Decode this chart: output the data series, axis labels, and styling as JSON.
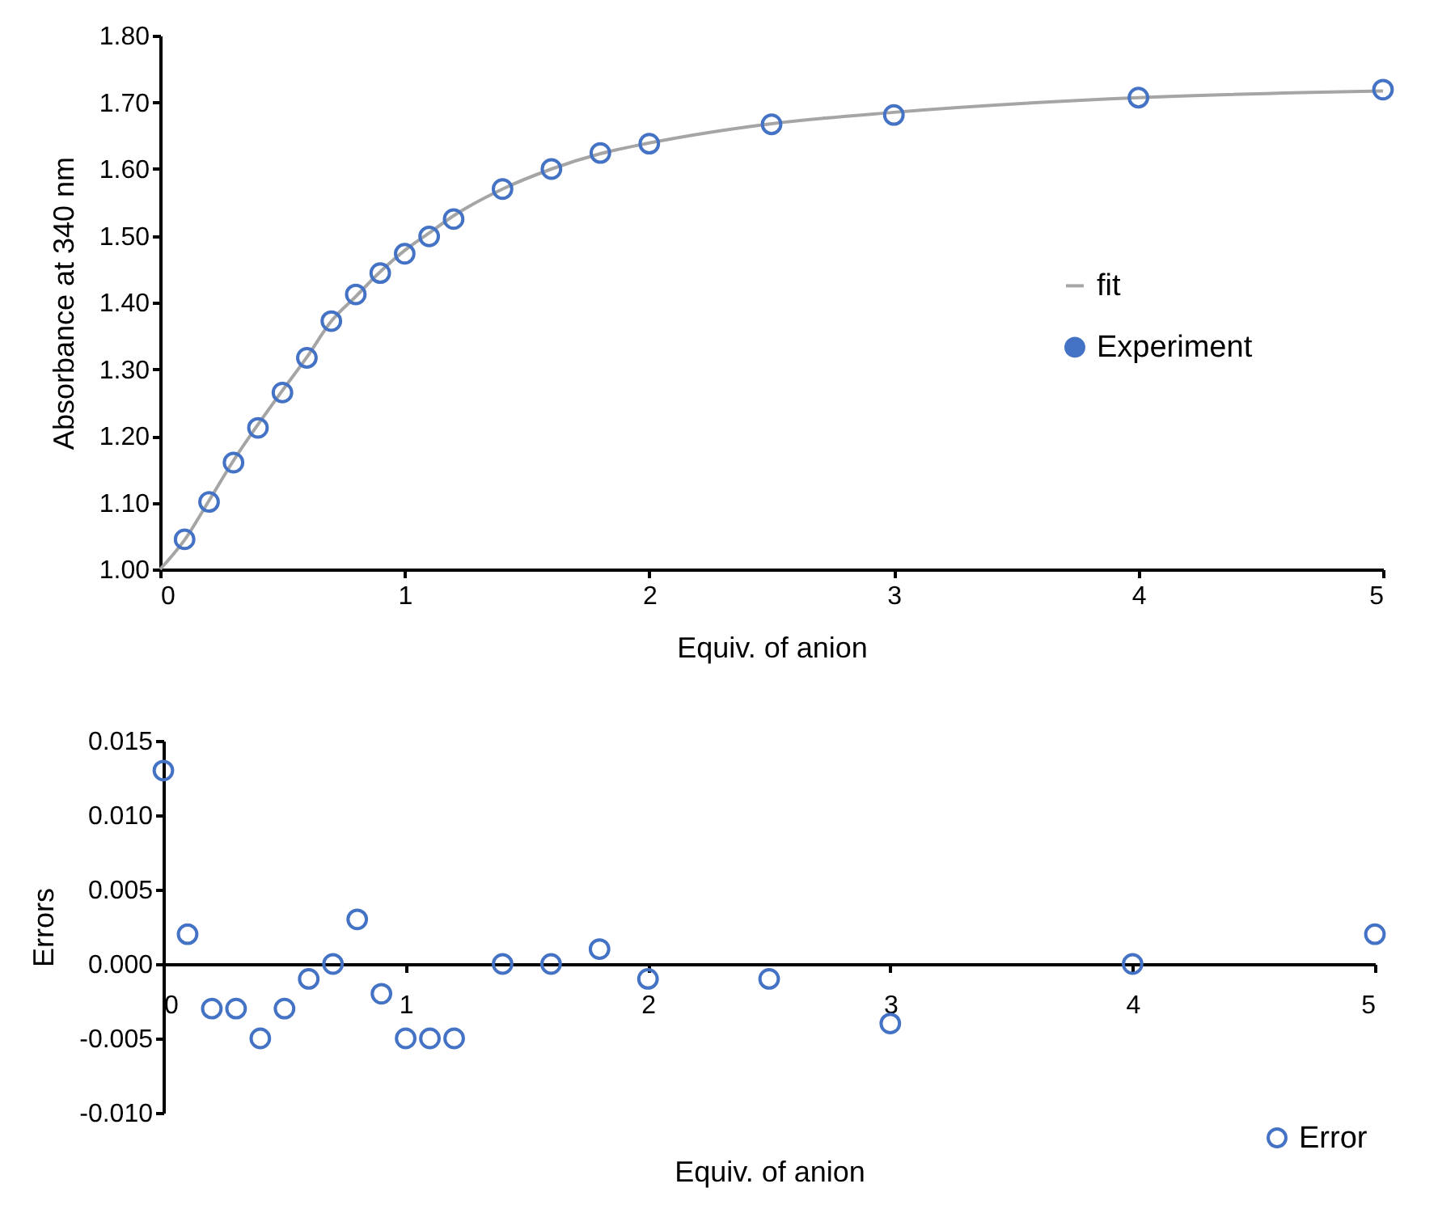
{
  "chart_data": [
    {
      "type": "scatter",
      "xlabel": "Equiv. of anion",
      "ylabel": "Absorbance at 340 nm",
      "legend": "right",
      "grid": false,
      "xlim": [
        0,
        5
      ],
      "xticks": [
        0,
        1,
        2,
        3,
        4,
        5
      ],
      "ylim": [
        1,
        1.8
      ],
      "yticks": [
        {
          "value": 1,
          "label": "1.00"
        },
        {
          "value": 1.1,
          "label": "1.10"
        },
        {
          "value": 1.2,
          "label": "1.20"
        },
        {
          "value": 1.3,
          "label": "1.30"
        },
        {
          "value": 1.4,
          "label": "1.40"
        },
        {
          "value": 1.5,
          "label": "1.50"
        },
        {
          "value": 1.6,
          "label": "1.60"
        },
        {
          "value": 1.7,
          "label": "1.70"
        },
        {
          "value": 1.8,
          "label": "1.80"
        }
      ],
      "series": [
        {
          "name": "fit",
          "type": "line",
          "color": "#a5a5a5",
          "x": [
            0,
            0.1,
            0.2,
            0.3,
            0.4,
            0.5,
            0.6,
            0.7,
            0.8,
            0.9,
            1,
            1.1,
            1.2,
            1.4,
            1.6,
            1.8,
            2,
            2.5,
            3,
            4,
            5
          ],
          "values": [
            1.0,
            1.044,
            1.103,
            1.163,
            1.217,
            1.268,
            1.318,
            1.372,
            1.409,
            1.446,
            1.478,
            1.504,
            1.53,
            1.57,
            1.6,
            1.623,
            1.639,
            1.668,
            1.685,
            1.707,
            1.717
          ]
        },
        {
          "name": "Experiment",
          "type": "scatter",
          "color": "#4472c4",
          "marker": "circle",
          "x": [
            0.1,
            0.2,
            0.3,
            0.4,
            0.5,
            0.6,
            0.7,
            0.8,
            0.9,
            1,
            1.1,
            1.2,
            1.4,
            1.6,
            1.8,
            2,
            2.5,
            3,
            4,
            5
          ],
          "values": [
            1.045,
            1.101,
            1.16,
            1.212,
            1.265,
            1.317,
            1.372,
            1.412,
            1.444,
            1.473,
            1.499,
            1.525,
            1.57,
            1.6,
            1.624,
            1.638,
            1.667,
            1.681,
            1.707,
            1.719
          ]
        }
      ]
    },
    {
      "type": "scatter",
      "xlabel": "Equiv. of anion",
      "ylabel": "Errors",
      "marker": "circle",
      "legend": "bottom right",
      "grid": false,
      "xlim": [
        0,
        5
      ],
      "xticks": [
        0,
        1,
        2,
        3,
        4,
        5
      ],
      "ylim": [
        -0.01,
        0.015
      ],
      "yticks": [
        {
          "value": -0.01,
          "label": "-0.010"
        },
        {
          "value": -0.005,
          "label": "-0.005"
        },
        {
          "value": 0,
          "label": "0.000"
        },
        {
          "value": 0.005,
          "label": "0.005"
        },
        {
          "value": 0.01,
          "label": "0.010"
        },
        {
          "value": 0.015,
          "label": "0.015"
        }
      ],
      "series": [
        {
          "name": "Error",
          "color": "#4472c4",
          "x": [
            0,
            0.1,
            0.2,
            0.3,
            0.4,
            0.5,
            0.6,
            0.7,
            0.8,
            0.9,
            1,
            1.1,
            1.2,
            1.4,
            1.6,
            1.8,
            2,
            2.5,
            3,
            4,
            5
          ],
          "values": [
            0.013,
            0.002,
            -0.003,
            -0.003,
            -0.005,
            -0.003,
            -0.001,
            0,
            0.003,
            -0.002,
            -0.005,
            -0.005,
            -0.005,
            0,
            0,
            0.001,
            -0.001,
            -0.001,
            -0.004,
            0,
            0.002
          ]
        }
      ]
    }
  ]
}
